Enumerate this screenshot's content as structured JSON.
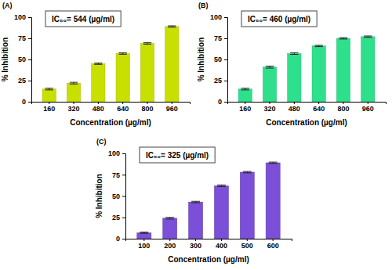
{
  "chart_data": [
    {
      "type": "bar",
      "title": "(A)",
      "annotation": "IC₅₀= 544 (µg/ml)",
      "x_label": "Concentration (µg/ml)",
      "y_label": "% Inhibition",
      "categories": [
        "160",
        "320",
        "480",
        "640",
        "800",
        "960"
      ],
      "values": [
        15,
        22,
        45,
        57,
        69,
        89
      ],
      "errors": [
        1,
        1,
        0.8,
        0.8,
        0.8,
        0.8
      ],
      "color": "#c8e000",
      "ylim": [
        0,
        100
      ],
      "yticks": [
        0,
        25,
        50,
        75,
        100
      ]
    },
    {
      "type": "bar",
      "title": "(B)",
      "annotation": "IC₅₀= 460 (µg/ml)",
      "x_label": "Concentration (µg/ml)",
      "y_label": "% Inhibition",
      "categories": [
        "160",
        "320",
        "480",
        "640",
        "800",
        "960"
      ],
      "values": [
        15,
        41,
        57,
        66,
        75,
        77
      ],
      "errors": [
        1,
        1.2,
        1,
        0.8,
        0.8,
        0.8
      ],
      "color": "#2ee08c",
      "ylim": [
        0,
        100
      ],
      "yticks": [
        0,
        25,
        50,
        75,
        100
      ]
    },
    {
      "type": "bar",
      "title": "(C)",
      "annotation": "IC₅₀= 325 (µg/ml)",
      "x_label": "Concentration (µg/ml)",
      "y_label": "% Inhibition",
      "categories": [
        "100",
        "200",
        "300",
        "400",
        "500",
        "600"
      ],
      "values": [
        7,
        24,
        43,
        62,
        78,
        89
      ],
      "errors": [
        0.8,
        1,
        0.8,
        1,
        0.8,
        0.8
      ],
      "color": "#7b4fd8",
      "ylim": [
        0,
        100
      ],
      "yticks": [
        0,
        25,
        50,
        75,
        100
      ]
    }
  ]
}
